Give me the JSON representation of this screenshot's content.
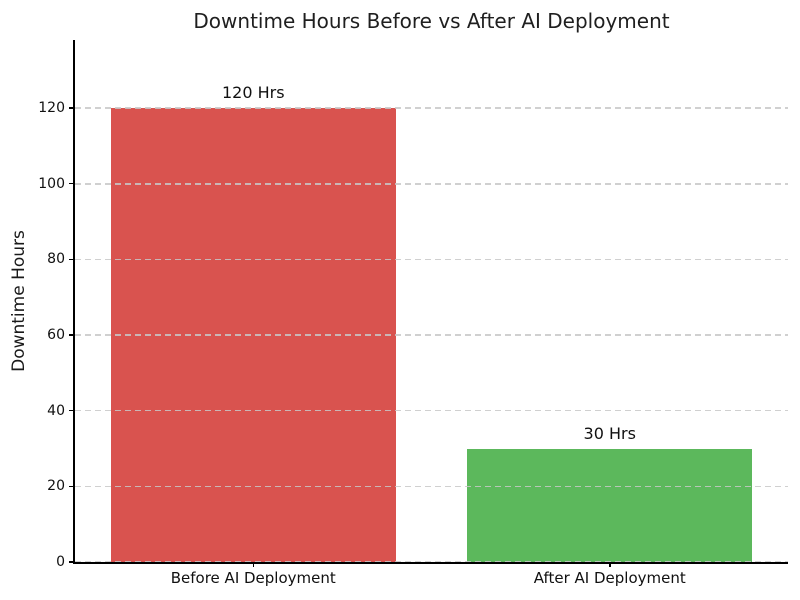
{
  "chart_data": {
    "type": "bar",
    "title": "Downtime Hours Before vs After AI Deployment",
    "xlabel": "",
    "ylabel": "Downtime Hours",
    "categories": [
      "Before AI Deployment",
      "After AI Deployment"
    ],
    "values": [
      120,
      30
    ],
    "bar_labels": [
      "120 Hrs",
      "30 Hrs"
    ],
    "bar_colors": [
      "#d9534f",
      "#5cb85c"
    ],
    "yticks": [
      0,
      20,
      40,
      60,
      80,
      100,
      120
    ],
    "ylim": [
      0,
      138
    ],
    "bar_width_fraction": 0.8,
    "grid": "horizontal dashed, drawn above bars",
    "legend": "none"
  },
  "colors": {
    "background": "#ffffff",
    "grid": "#c8c8c8",
    "spine": "#000000",
    "text": "#111111",
    "title_text": "#1f1f1f"
  }
}
